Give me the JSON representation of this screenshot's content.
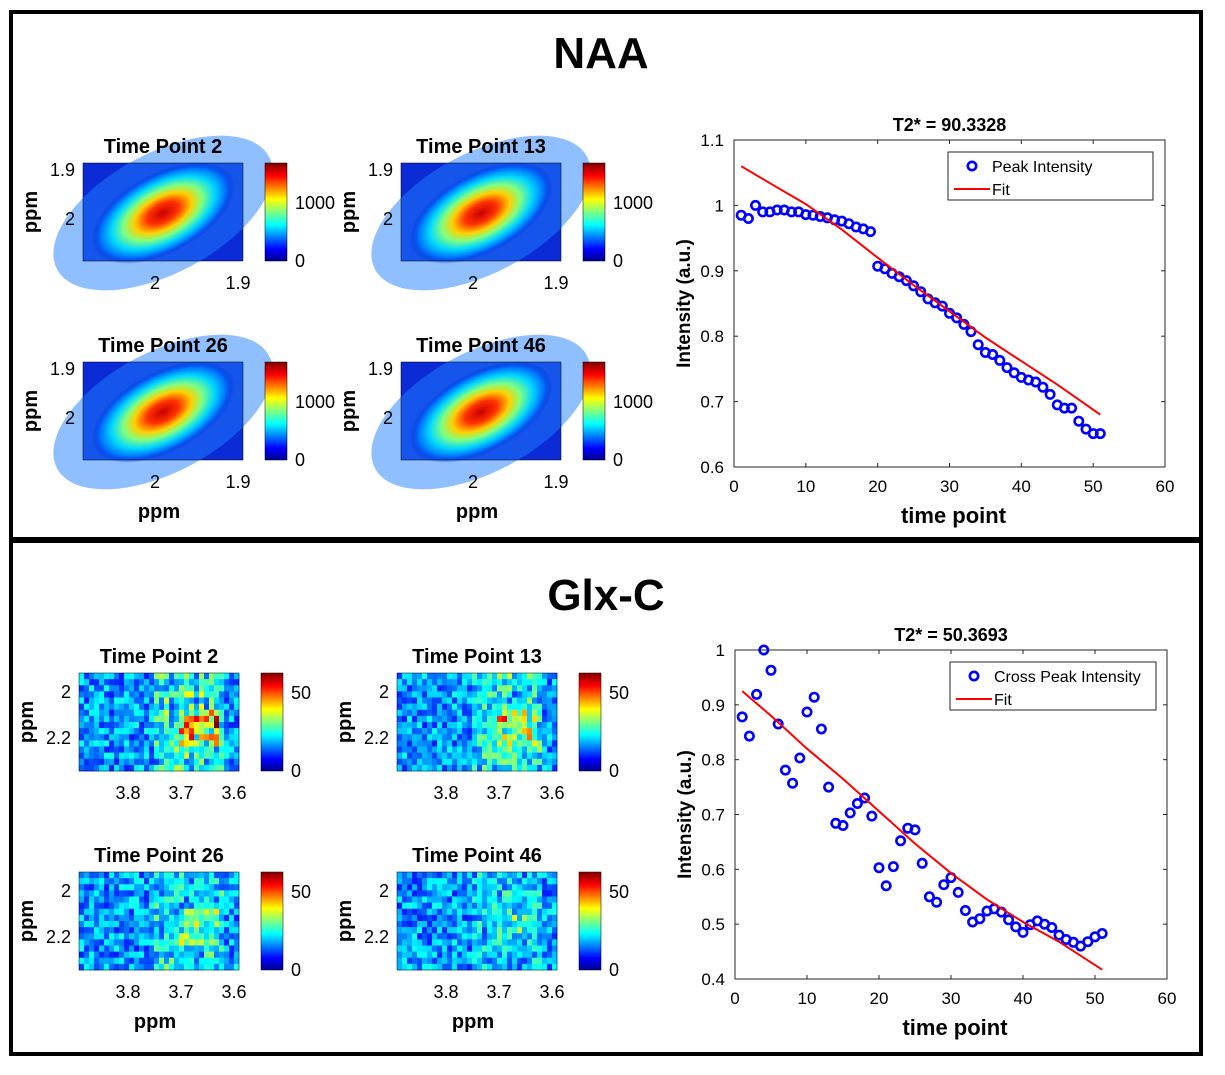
{
  "figure": {
    "panels": [
      {
        "title": "NAA",
        "heatmaps": [
          {
            "title": "Time Point 2",
            "ylabel": "ppm",
            "yticks": [
              "1.9",
              "2"
            ],
            "xticks": [
              "2",
              "1.9"
            ],
            "colorbar_ticks": [
              "1000",
              "0"
            ]
          },
          {
            "title": "Time Point 13",
            "ylabel": "ppm",
            "yticks": [
              "1.9",
              "2"
            ],
            "xticks": [
              "2",
              "1.9"
            ],
            "colorbar_ticks": [
              "1000",
              "0"
            ]
          },
          {
            "title": "Time Point 26",
            "ylabel": "ppm",
            "yticks": [
              "1.9",
              "2"
            ],
            "xticks": [
              "2",
              "1.9"
            ],
            "colorbar_ticks": [
              "1000",
              "0"
            ],
            "xlabel": "ppm"
          },
          {
            "title": "Time Point 46",
            "ylabel": "ppm",
            "yticks": [
              "1.9",
              "2"
            ],
            "xticks": [
              "2",
              "1.9"
            ],
            "colorbar_ticks": [
              "1000",
              "0"
            ],
            "xlabel": "ppm"
          }
        ]
      },
      {
        "title": "Glx-C",
        "heatmaps": [
          {
            "title": "Time Point 2",
            "ylabel": "ppm",
            "yticks": [
              "2",
              "2.2"
            ],
            "xticks": [
              "3.8",
              "3.7",
              "3.6"
            ],
            "colorbar_ticks": [
              "50",
              "0"
            ]
          },
          {
            "title": "Time Point 13",
            "ylabel": "ppm",
            "yticks": [
              "2",
              "2.2"
            ],
            "xticks": [
              "3.8",
              "3.7",
              "3.6"
            ],
            "colorbar_ticks": [
              "50",
              "0"
            ]
          },
          {
            "title": "Time Point 26",
            "ylabel": "ppm",
            "yticks": [
              "2",
              "2.2"
            ],
            "xticks": [
              "3.8",
              "3.7",
              "3.6"
            ],
            "colorbar_ticks": [
              "50",
              "0"
            ],
            "xlabel": "ppm"
          },
          {
            "title": "Time Point 46",
            "ylabel": "ppm",
            "yticks": [
              "2",
              "2.2"
            ],
            "xticks": [
              "3.8",
              "3.7",
              "3.6"
            ],
            "colorbar_ticks": [
              "50",
              "0"
            ],
            "xlabel": "ppm"
          }
        ]
      }
    ]
  },
  "chart_data": [
    {
      "type": "scatter",
      "title": "T2* = 90.3328",
      "xlabel": "time point",
      "ylabel": "Intensity (a.u.)",
      "xlim": [
        0,
        60
      ],
      "ylim": [
        0.6,
        1.1
      ],
      "xticks": [
        0,
        10,
        20,
        30,
        40,
        50,
        60
      ],
      "yticks": [
        0.6,
        0.7,
        0.8,
        0.9,
        1,
        1.1
      ],
      "legend_position": "top-right",
      "series": [
        {
          "name": "Peak Intensity",
          "kind": "marker",
          "color": "#0000ff",
          "x": [
            1,
            2,
            3,
            4,
            5,
            6,
            7,
            8,
            9,
            10,
            11,
            12,
            13,
            14,
            15,
            16,
            17,
            18,
            19,
            20,
            21,
            22,
            23,
            24,
            25,
            26,
            27,
            28,
            29,
            30,
            31,
            32,
            33,
            34,
            35,
            36,
            37,
            38,
            39,
            40,
            41,
            42,
            43,
            44,
            45,
            46,
            47,
            48,
            49,
            50,
            51
          ],
          "y": [
            0.985,
            0.98,
            1.0,
            0.99,
            0.99,
            0.993,
            0.993,
            0.99,
            0.99,
            0.986,
            0.985,
            0.983,
            0.981,
            0.978,
            0.976,
            0.972,
            0.967,
            0.964,
            0.96,
            0.907,
            0.903,
            0.896,
            0.891,
            0.885,
            0.877,
            0.868,
            0.857,
            0.851,
            0.846,
            0.835,
            0.828,
            0.818,
            0.807,
            0.787,
            0.775,
            0.772,
            0.763,
            0.752,
            0.744,
            0.737,
            0.733,
            0.73,
            0.722,
            0.711,
            0.695,
            0.69,
            0.69,
            0.67,
            0.658,
            0.651,
            0.651
          ]
        },
        {
          "name": "Fit",
          "kind": "line",
          "color": "#ff0000",
          "x": [
            1,
            5,
            10,
            15,
            20,
            25,
            30,
            35,
            40,
            45,
            51
          ],
          "y": [
            1.06,
            1.034,
            1.002,
            0.963,
            0.92,
            0.878,
            0.838,
            0.798,
            0.762,
            0.726,
            0.68
          ]
        }
      ]
    },
    {
      "type": "scatter",
      "title": "T2* = 50.3693",
      "xlabel": "time point",
      "ylabel": "Intensity (a.u.)",
      "xlim": [
        0,
        60
      ],
      "ylim": [
        0.4,
        1
      ],
      "xticks": [
        0,
        10,
        20,
        30,
        40,
        50,
        60
      ],
      "yticks": [
        0.4,
        0.5,
        0.6,
        0.7,
        0.8,
        0.9,
        1
      ],
      "legend_position": "top-right",
      "series": [
        {
          "name": "Cross Peak Intensity",
          "kind": "marker",
          "color": "#0000ff",
          "x": [
            1,
            2,
            3,
            4,
            5,
            6,
            7,
            8,
            9,
            10,
            11,
            12,
            13,
            14,
            15,
            16,
            17,
            18,
            19,
            20,
            21,
            22,
            23,
            24,
            25,
            26,
            27,
            28,
            29,
            30,
            31,
            32,
            33,
            34,
            35,
            36,
            37,
            38,
            39,
            40,
            41,
            42,
            43,
            44,
            45,
            46,
            47,
            48,
            49,
            50,
            51
          ],
          "y": [
            0.878,
            0.843,
            0.919,
            1.0,
            0.963,
            0.865,
            0.781,
            0.757,
            0.803,
            0.887,
            0.914,
            0.856,
            0.75,
            0.684,
            0.68,
            0.703,
            0.72,
            0.73,
            0.697,
            0.603,
            0.57,
            0.605,
            0.652,
            0.675,
            0.672,
            0.611,
            0.55,
            0.54,
            0.572,
            0.585,
            0.558,
            0.525,
            0.504,
            0.51,
            0.524,
            0.528,
            0.522,
            0.508,
            0.495,
            0.485,
            0.499,
            0.506,
            0.5,
            0.494,
            0.48,
            0.472,
            0.467,
            0.46,
            0.468,
            0.477,
            0.483
          ]
        },
        {
          "name": "Fit",
          "kind": "line",
          "color": "#ff0000",
          "x": [
            1,
            5,
            10,
            15,
            20,
            25,
            30,
            35,
            40,
            45,
            51
          ],
          "y": [
            0.925,
            0.88,
            0.82,
            0.765,
            0.706,
            0.647,
            0.593,
            0.545,
            0.504,
            0.468,
            0.417
          ]
        }
      ]
    }
  ]
}
